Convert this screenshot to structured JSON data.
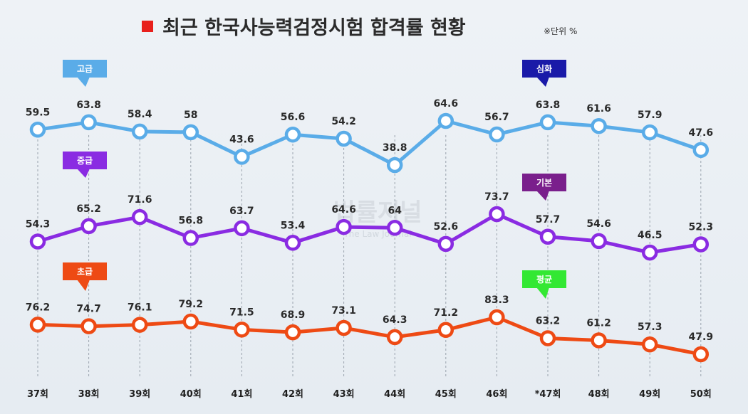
{
  "title": "최근 한국사능력검정시험 합격률 현황",
  "unit_note": "※단위 %",
  "watermark": "법률저널",
  "watermark_sub": "The Law Journal",
  "chart_data": {
    "type": "line",
    "title": "최근 한국사능력검정시험 합격률 현황",
    "unit": "%",
    "categories": [
      "37회",
      "38회",
      "39회",
      "40회",
      "41회",
      "42회",
      "43회",
      "44회",
      "45회",
      "46회",
      "*47회",
      "48회",
      "49회",
      "50회"
    ],
    "series": [
      {
        "name": "고급",
        "later_name": "심화",
        "color": "#5aace8",
        "values": [
          59.5,
          63.8,
          58.4,
          58,
          43.6,
          56.6,
          54.2,
          38.8,
          64.6,
          56.7,
          63.8,
          61.6,
          57.9,
          47.6
        ],
        "labels": [
          "59.5",
          "63.8",
          "58.4",
          "58",
          "43.6",
          "56.6",
          "54.2",
          "38.8",
          "64.6",
          "56.7",
          "63.8",
          "61.6",
          "57.9",
          "47.6"
        ]
      },
      {
        "name": "중급",
        "later_name": "기본",
        "color": "#8a2be2",
        "values": [
          54.3,
          65.2,
          71.6,
          56.8,
          63.7,
          53.4,
          64.6,
          64,
          52.6,
          73.7,
          57.7,
          54.6,
          46.5,
          52.3
        ],
        "labels": [
          "54.3",
          "65.2",
          "71.6",
          "56.8",
          "63.7",
          "53.4",
          "64.6",
          "64",
          "52.6",
          "73.7",
          "57.7",
          "54.6",
          "46.5",
          "52.3"
        ]
      },
      {
        "name": "초급",
        "later_name": "평균",
        "color": "#ee4a14",
        "values": [
          76.2,
          74.7,
          76.1,
          79.2,
          71.5,
          68.9,
          73.1,
          64.3,
          71.2,
          83.3,
          63.2,
          61.2,
          57.3,
          47.9
        ],
        "labels": [
          "76.2",
          "74.7",
          "76.1",
          "79.2",
          "71.5",
          "68.9",
          "73.1",
          "64.3",
          "71.2",
          "83.3",
          "63.2",
          "61.2",
          "57.3",
          "47.9"
        ]
      }
    ],
    "tags": [
      {
        "text": "고급",
        "color": "#5aace8"
      },
      {
        "text": "심화",
        "color": "#1a1aa8"
      },
      {
        "text": "중급",
        "color": "#8a2be2"
      },
      {
        "text": "기본",
        "color": "#7a1f8c"
      },
      {
        "text": "초급",
        "color": "#ee4a14"
      },
      {
        "text": "평균",
        "color": "#33e833"
      }
    ],
    "legend_marker_color": "#e8201c"
  }
}
